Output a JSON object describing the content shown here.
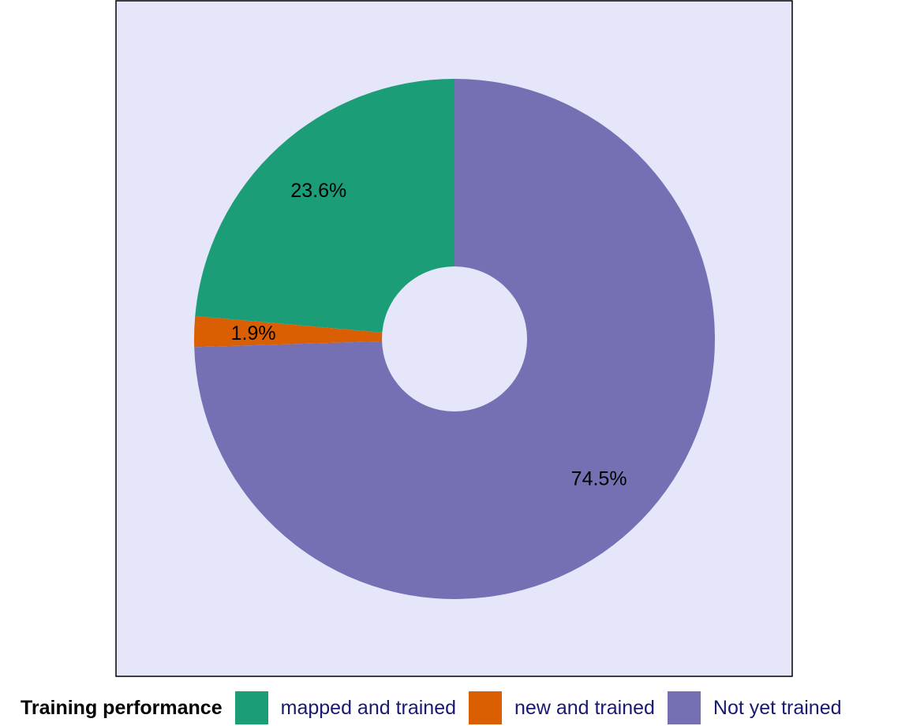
{
  "chart_data": {
    "type": "pie",
    "donut": true,
    "title": "",
    "slices": [
      {
        "label": "mapped and trained",
        "value": 23.6,
        "value_label": "23.6%",
        "color": "#1B9E77"
      },
      {
        "label": "new and trained",
        "value": 1.9,
        "value_label": "1.9%",
        "color": "#D95F02"
      },
      {
        "label": "Not yet trained",
        "value": 74.5,
        "value_label": "74.5%",
        "color": "#7570B3"
      }
    ],
    "panel_background": "#E6E6FA",
    "legend": {
      "title": "Training performance",
      "position": "bottom"
    }
  }
}
